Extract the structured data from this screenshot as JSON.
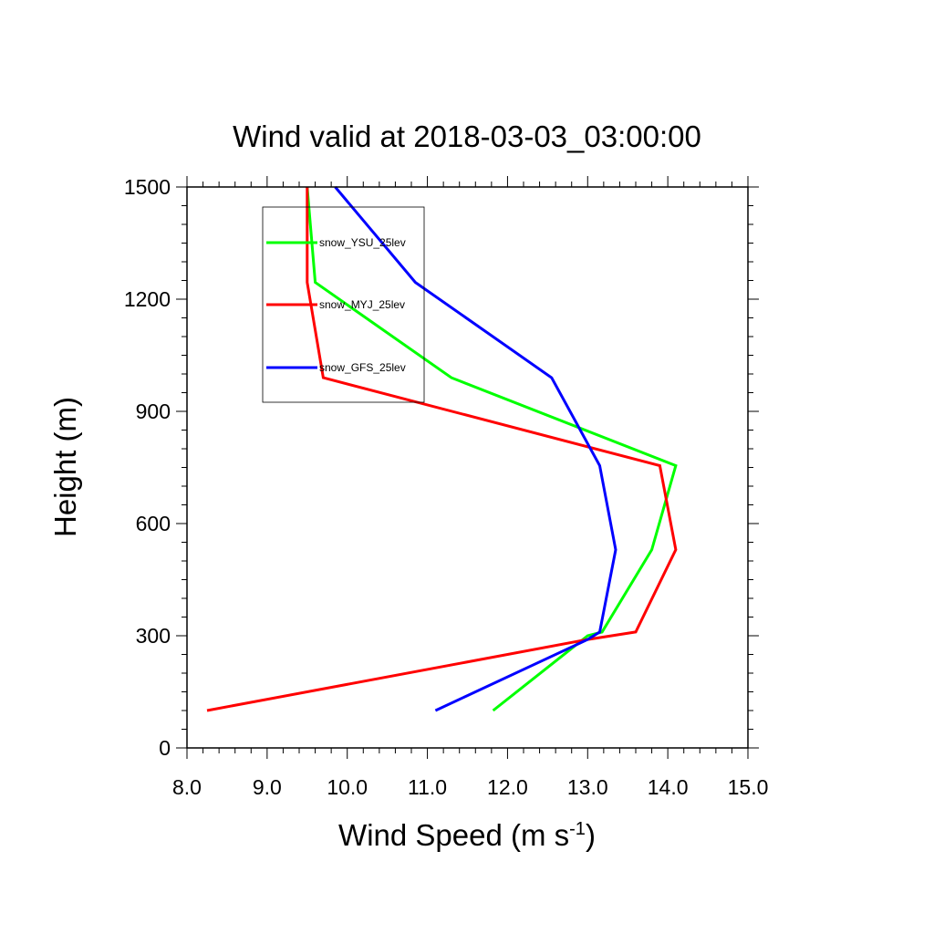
{
  "chart_data": {
    "type": "line",
    "title": "Wind valid at 2018-03-03_03:00:00",
    "xlabel": "Wind Speed (m s",
    "xlabel_sup": "-1",
    "xlabel_close": ")",
    "ylabel": "Height (m)",
    "xlim": [
      8.0,
      15.0
    ],
    "ylim": [
      0,
      1500
    ],
    "x_ticks": [
      "8.0",
      "9.0",
      "10.0",
      "11.0",
      "12.0",
      "13.0",
      "14.0",
      "15.0"
    ],
    "y_ticks": [
      "0",
      "300",
      "600",
      "900",
      "1200",
      "1500"
    ],
    "grid": false,
    "legend_position": "top-left",
    "series": [
      {
        "name": "snow_YSU_25lev",
        "color": "#00ff00",
        "points": [
          [
            11.82,
            100
          ],
          [
            13.0,
            300
          ],
          [
            13.18,
            310
          ],
          [
            13.8,
            530
          ],
          [
            14.1,
            755
          ],
          [
            11.3,
            990
          ],
          [
            9.6,
            1245
          ],
          [
            9.5,
            1500
          ]
        ]
      },
      {
        "name": "snow_MYJ_25lev",
        "color": "#ff0000",
        "points": [
          [
            8.25,
            100
          ],
          [
            13.0,
            290
          ],
          [
            13.6,
            310
          ],
          [
            14.1,
            530
          ],
          [
            13.9,
            755
          ],
          [
            9.7,
            990
          ],
          [
            9.5,
            1245
          ],
          [
            9.5,
            1500
          ]
        ]
      },
      {
        "name": "snow_GFS_25lev",
        "color": "#0000ff",
        "points": [
          [
            11.1,
            100
          ],
          [
            13.0,
            290
          ],
          [
            13.15,
            310
          ],
          [
            13.35,
            530
          ],
          [
            13.15,
            755
          ],
          [
            12.55,
            990
          ],
          [
            10.85,
            1245
          ],
          [
            9.85,
            1500
          ]
        ]
      }
    ]
  }
}
